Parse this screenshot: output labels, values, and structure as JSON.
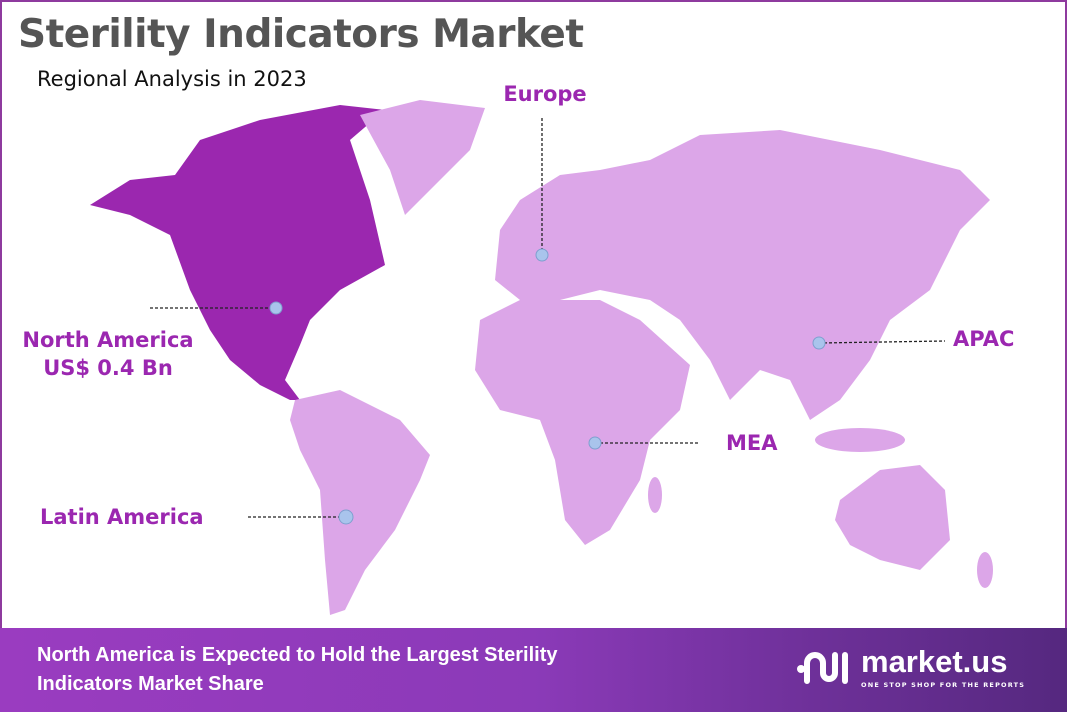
{
  "title": "Sterility Indicators Market",
  "subtitle": "Regional Analysis in 2023",
  "colors": {
    "highlight_region": "#9b27af",
    "other_regions": "#dca6e8",
    "label": "#9b27b0",
    "marker": "#a9c4ec",
    "border": "#8e3a9e"
  },
  "regions": {
    "north_america": {
      "name": "North America",
      "value": "US$ 0.4 Bn",
      "highlighted": true
    },
    "europe": {
      "name": "Europe"
    },
    "apac": {
      "name": "APAC"
    },
    "mea": {
      "name": "MEA"
    },
    "latin_america": {
      "name": "Latin America"
    }
  },
  "footer": {
    "line1": "North America is Expected to Hold the Largest Sterility",
    "line2": "Indicators Market Share",
    "logo_text": "market.us",
    "logo_tagline": "ONE STOP SHOP FOR THE REPORTS"
  }
}
